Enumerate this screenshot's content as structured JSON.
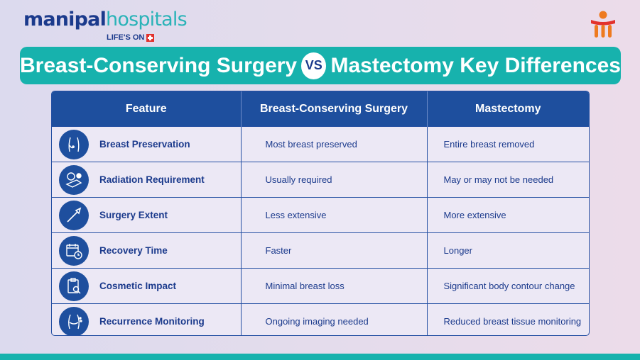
{
  "logo": {
    "name_part1": "manipal",
    "name_part2": "hospitals",
    "tagline": "LIFE'S ON"
  },
  "brand_mark_icon": "manipal-logo-icon",
  "title": {
    "left": "Breast-Conserving Surgery",
    "vs": "VS",
    "right": "Mastectomy Key Differences"
  },
  "colors": {
    "navy": "#1e4f9e",
    "teal": "#17b2ad",
    "text": "#1b3a8c",
    "accent_red": "#e2322d",
    "accent_orange": "#ee7a1f"
  },
  "table": {
    "headers": [
      "Feature",
      "Breast-Conserving Surgery",
      "Mastectomy"
    ],
    "rows": [
      {
        "icon": "breast-icon",
        "feature": "Breast Preservation",
        "bcs": "Most breast preserved",
        "mastectomy": "Entire breast removed"
      },
      {
        "icon": "radiation-icon",
        "feature": "Radiation Requirement",
        "bcs": "Usually required",
        "mastectomy": "May or may not be needed"
      },
      {
        "icon": "scalpel-icon",
        "feature": "Surgery Extent",
        "bcs": "Less extensive",
        "mastectomy": "More extensive"
      },
      {
        "icon": "calendar-clock-icon",
        "feature": "Recovery Time",
        "bcs": "Faster",
        "mastectomy": "Longer"
      },
      {
        "icon": "clipboard-search-icon",
        "feature": "Cosmetic Impact",
        "bcs": "Minimal breast loss",
        "mastectomy": "Significant body contour change"
      },
      {
        "icon": "body-monitoring-icon",
        "feature": "Recurrence Monitoring",
        "bcs": "Ongoing imaging needed",
        "mastectomy": "Reduced breast tissue monitoring"
      }
    ]
  }
}
